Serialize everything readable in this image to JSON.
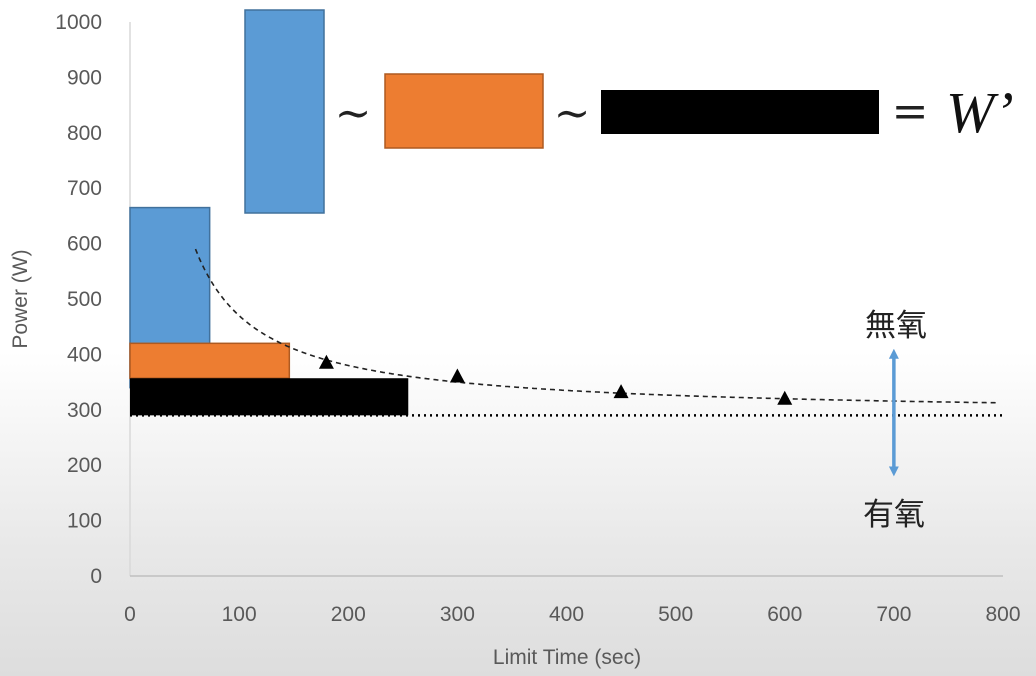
{
  "chart_data": {
    "type": "scatter",
    "xlabel": "Limit Time (sec)",
    "ylabel": "Power (W)",
    "xlim": [
      0,
      800
    ],
    "ylim": [
      0,
      1000
    ],
    "x_ticks": [
      0,
      100,
      200,
      300,
      400,
      500,
      600,
      700,
      800
    ],
    "y_ticks": [
      0,
      100,
      200,
      300,
      400,
      500,
      600,
      700,
      800,
      900,
      1000
    ],
    "grid": false,
    "series": [
      {
        "marker": "triangle",
        "color": "#000000",
        "points": [
          {
            "x": 180,
            "y": 385
          },
          {
            "x": 300,
            "y": 360
          },
          {
            "x": 450,
            "y": 332
          },
          {
            "x": 600,
            "y": 320
          }
        ]
      }
    ],
    "curve": {
      "style": "dashed",
      "cp": 290,
      "w_prime": 18000,
      "x_range": [
        60,
        797
      ]
    },
    "critical_power_line": {
      "y": 290,
      "style": "dotted"
    },
    "work_rectangles": [
      {
        "color": "#5b9bd5",
        "x": [
          0,
          73
        ],
        "y": [
          340,
          665
        ]
      },
      {
        "color": "#ed7d31",
        "x": [
          0,
          146
        ],
        "y": [
          357,
          420
        ]
      },
      {
        "color": "#000000",
        "x": [
          0,
          255
        ],
        "y": [
          290,
          357
        ]
      }
    ],
    "arrow": {
      "x": 700,
      "y": [
        178,
        412
      ],
      "color": "#5b9bd5"
    }
  },
  "annotations": {
    "anaerobic": "無氧",
    "aerobic": "有氧",
    "equation": {
      "colors": [
        "#5b9bd5",
        "#ed7d31",
        "#000000"
      ],
      "tilde": "~",
      "equals": "=",
      "w_prime": "W’"
    }
  }
}
